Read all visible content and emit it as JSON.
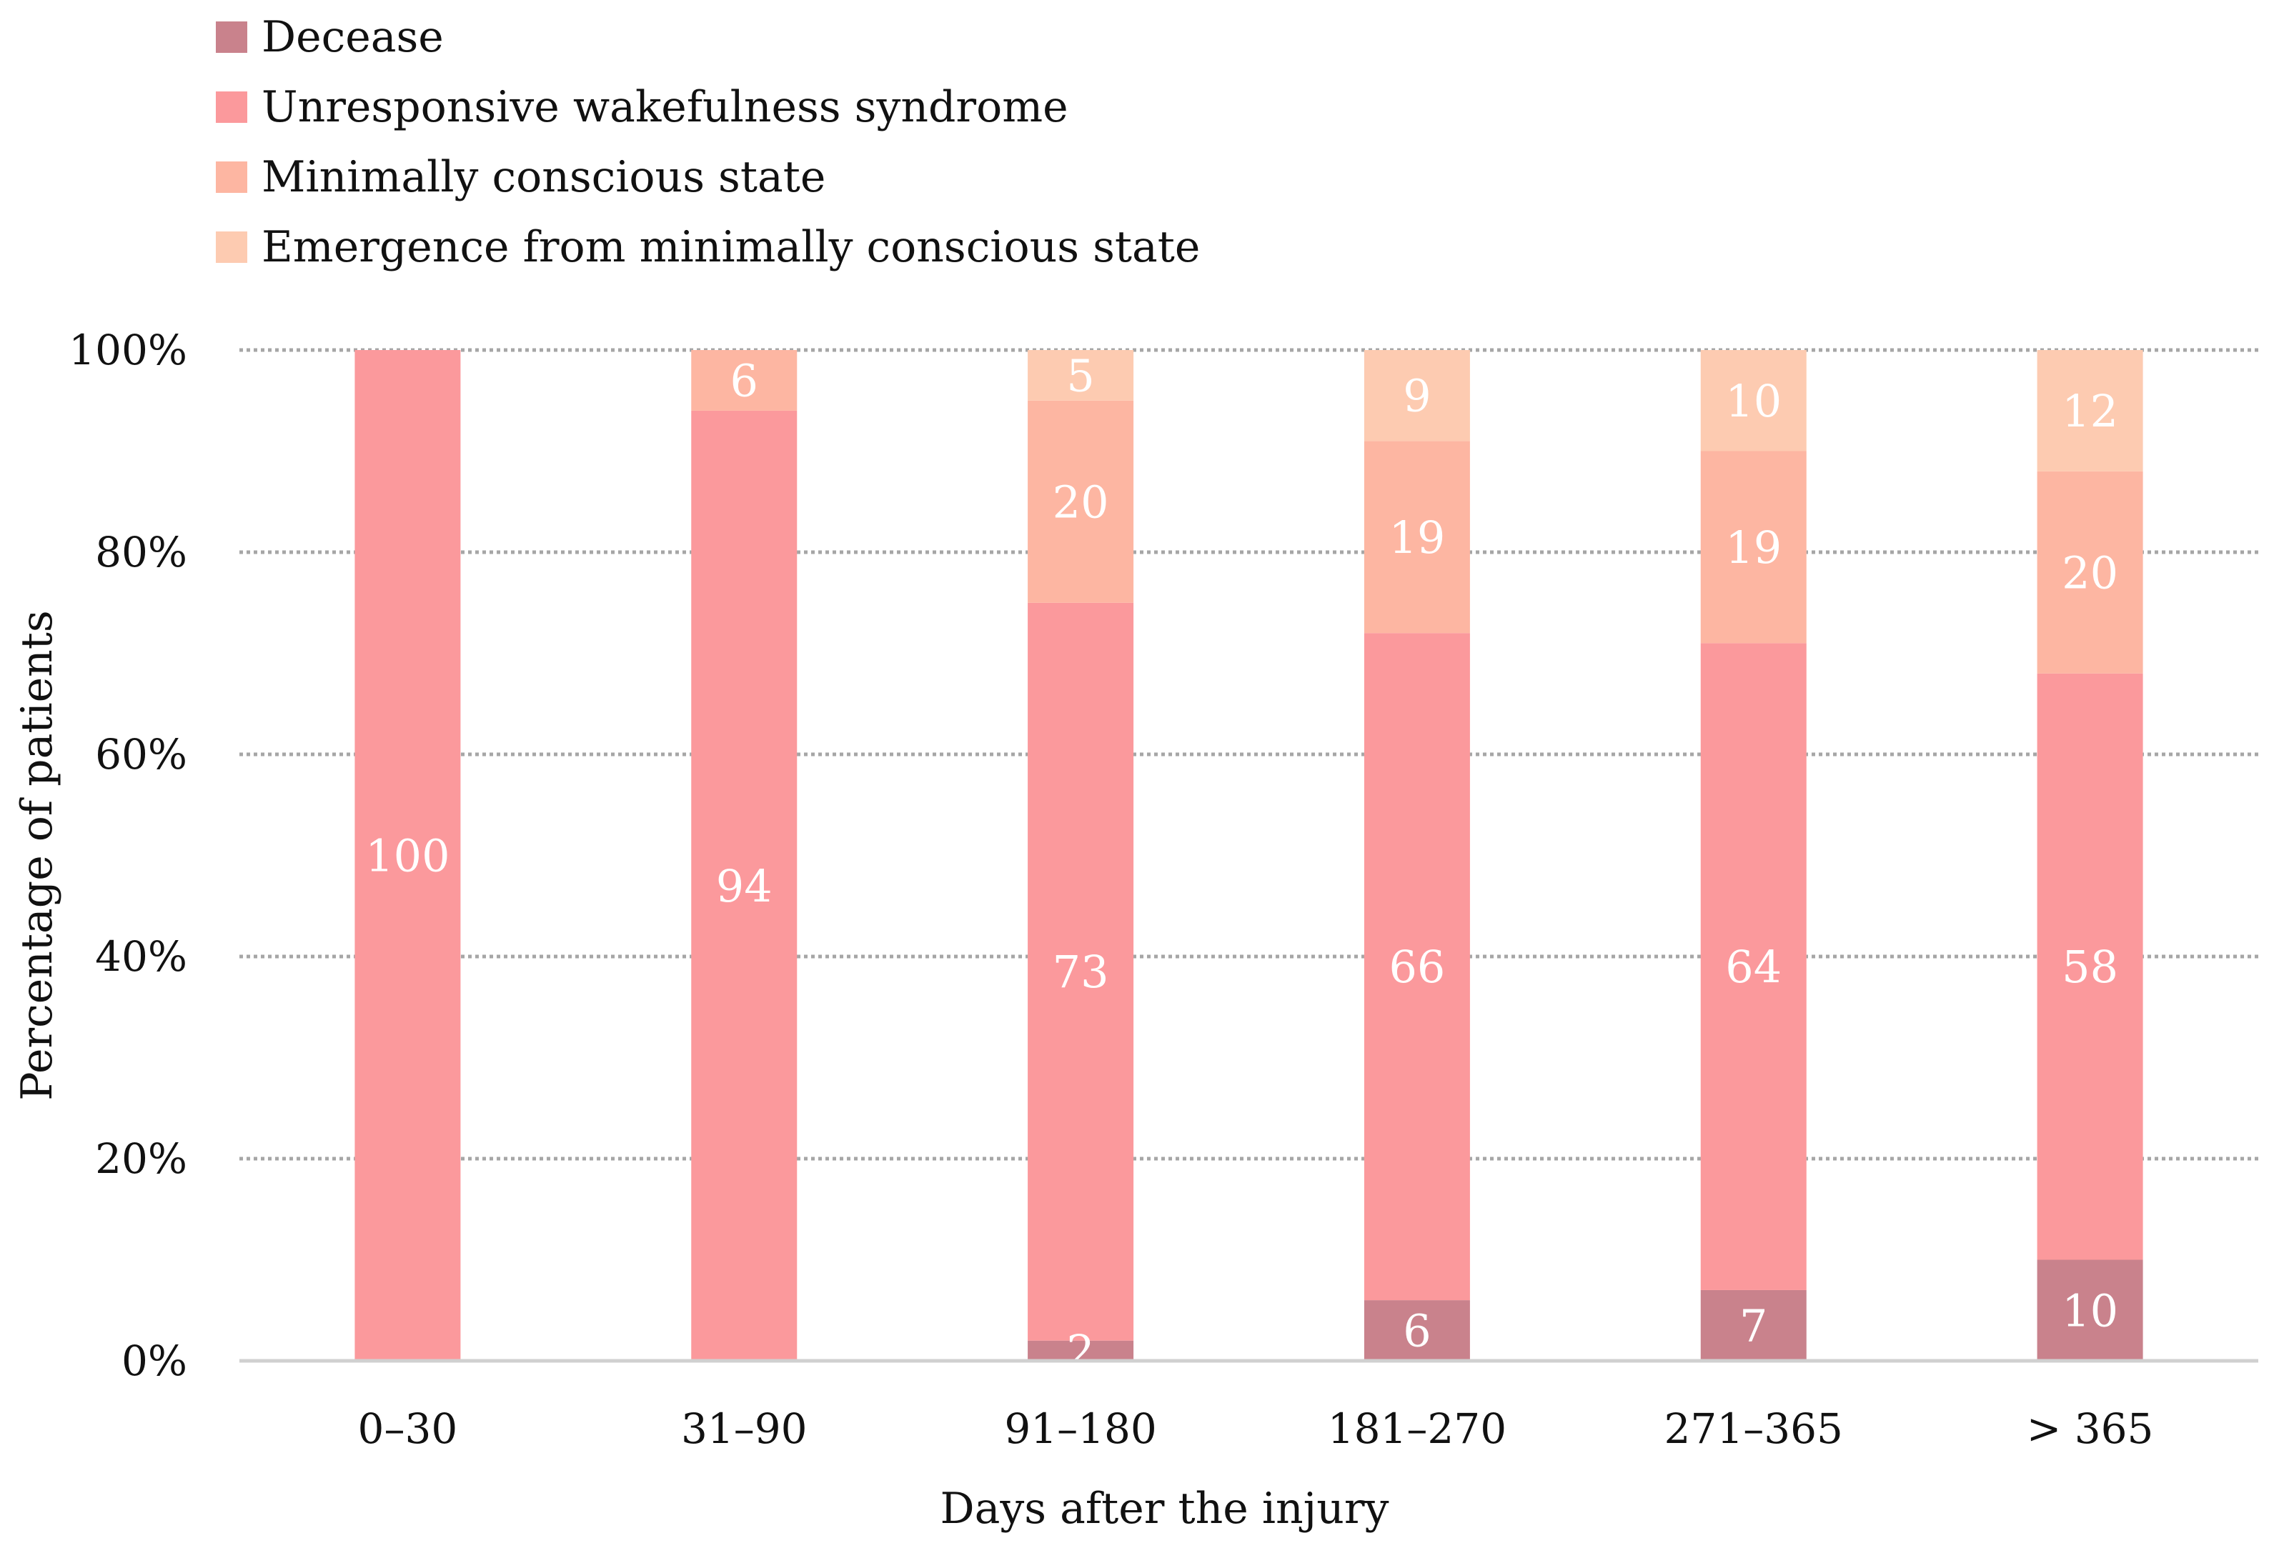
{
  "chart_data": {
    "type": "bar",
    "stacked": true,
    "percent_stacked": true,
    "title": "",
    "xlabel": "Days after the injury",
    "ylabel": "Percentage of patients",
    "categories": [
      "0–30",
      "31–90",
      "91–180",
      "181–270",
      "271–365",
      "> 365"
    ],
    "ylim": [
      0,
      100
    ],
    "yticks": [
      0,
      20,
      40,
      60,
      80,
      100
    ],
    "ytick_labels": [
      "0%",
      "20%",
      "40%",
      "60%",
      "80%",
      "100%"
    ],
    "grid": true,
    "legend_position": "top-left",
    "series": [
      {
        "name": "Decease",
        "color": "#c9828c",
        "values": [
          0,
          0,
          2,
          6,
          7,
          10
        ]
      },
      {
        "name": "Unresponsive wakefulness syndrome",
        "color": "#fb999c",
        "values": [
          100,
          94,
          73,
          66,
          64,
          58
        ]
      },
      {
        "name": "Minimally conscious state",
        "color": "#fdb6a2",
        "values": [
          0,
          6,
          20,
          19,
          19,
          20
        ]
      },
      {
        "name": "Emergence from minimally conscious state",
        "color": "#fdcbb1",
        "values": [
          0,
          0,
          5,
          9,
          10,
          12
        ]
      }
    ],
    "data_labels": [
      [
        "",
        "",
        "2",
        "6",
        "7",
        "10"
      ],
      [
        "100",
        "94",
        "73",
        "66",
        "64",
        "58"
      ],
      [
        "",
        "6",
        "20",
        "19",
        "19",
        "20"
      ],
      [
        "",
        "",
        "5",
        "9",
        "10",
        "12"
      ]
    ],
    "colors": {
      "grid": "#a6a6a6",
      "axis": "#d0d0d0",
      "label_text": "#ffffff"
    }
  }
}
